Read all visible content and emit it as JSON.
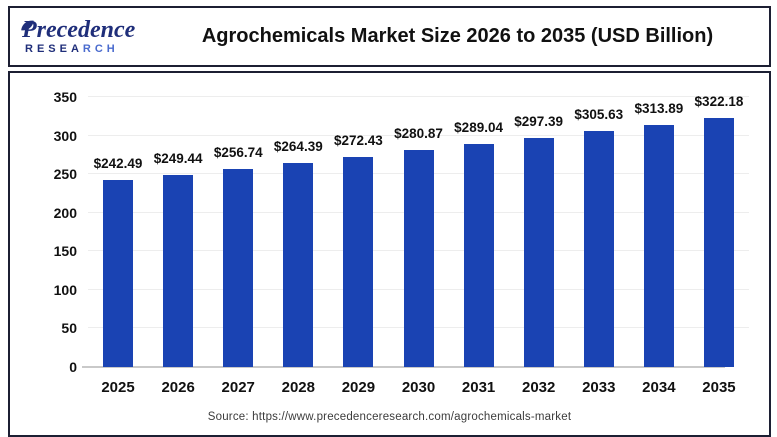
{
  "header": {
    "logo": {
      "line1": "Precedence",
      "line2_a": "RESEA",
      "line2_b": "RCH"
    },
    "title": "Agrochemicals Market Size 2026 to 2035 (USD Billion)"
  },
  "chart_data": {
    "type": "bar",
    "title": "Agrochemicals Market Size 2026 to 2035 (USD Billion)",
    "categories": [
      "2025",
      "2026",
      "2027",
      "2028",
      "2029",
      "2030",
      "2031",
      "2032",
      "2033",
      "2034",
      "2035"
    ],
    "values": [
      242.49,
      249.44,
      256.74,
      264.39,
      272.43,
      280.87,
      289.04,
      297.39,
      305.63,
      313.89,
      322.18
    ],
    "labels": [
      "$242.49",
      "$249.44",
      "$256.74",
      "$264.39",
      "$272.43",
      "$280.87",
      "$289.04",
      "$297.39",
      "$305.63",
      "$313.89",
      "$322.18"
    ],
    "xlabel": "",
    "ylabel": "",
    "ylim": [
      0,
      350
    ],
    "yticks": [
      0,
      50,
      100,
      150,
      200,
      250,
      300,
      350
    ],
    "grid": true,
    "legend_position": "none"
  },
  "footer": {
    "source": "Source: https://www.precedenceresearch.com/agrochemicals-market"
  },
  "colors": {
    "bar": "#1a43b3",
    "frame-border": "#1c1f33",
    "grid": "#ededed",
    "axis": "#c9c9c9",
    "logo-navy": "#1f2e7a",
    "logo-blue": "#4a6bce"
  }
}
